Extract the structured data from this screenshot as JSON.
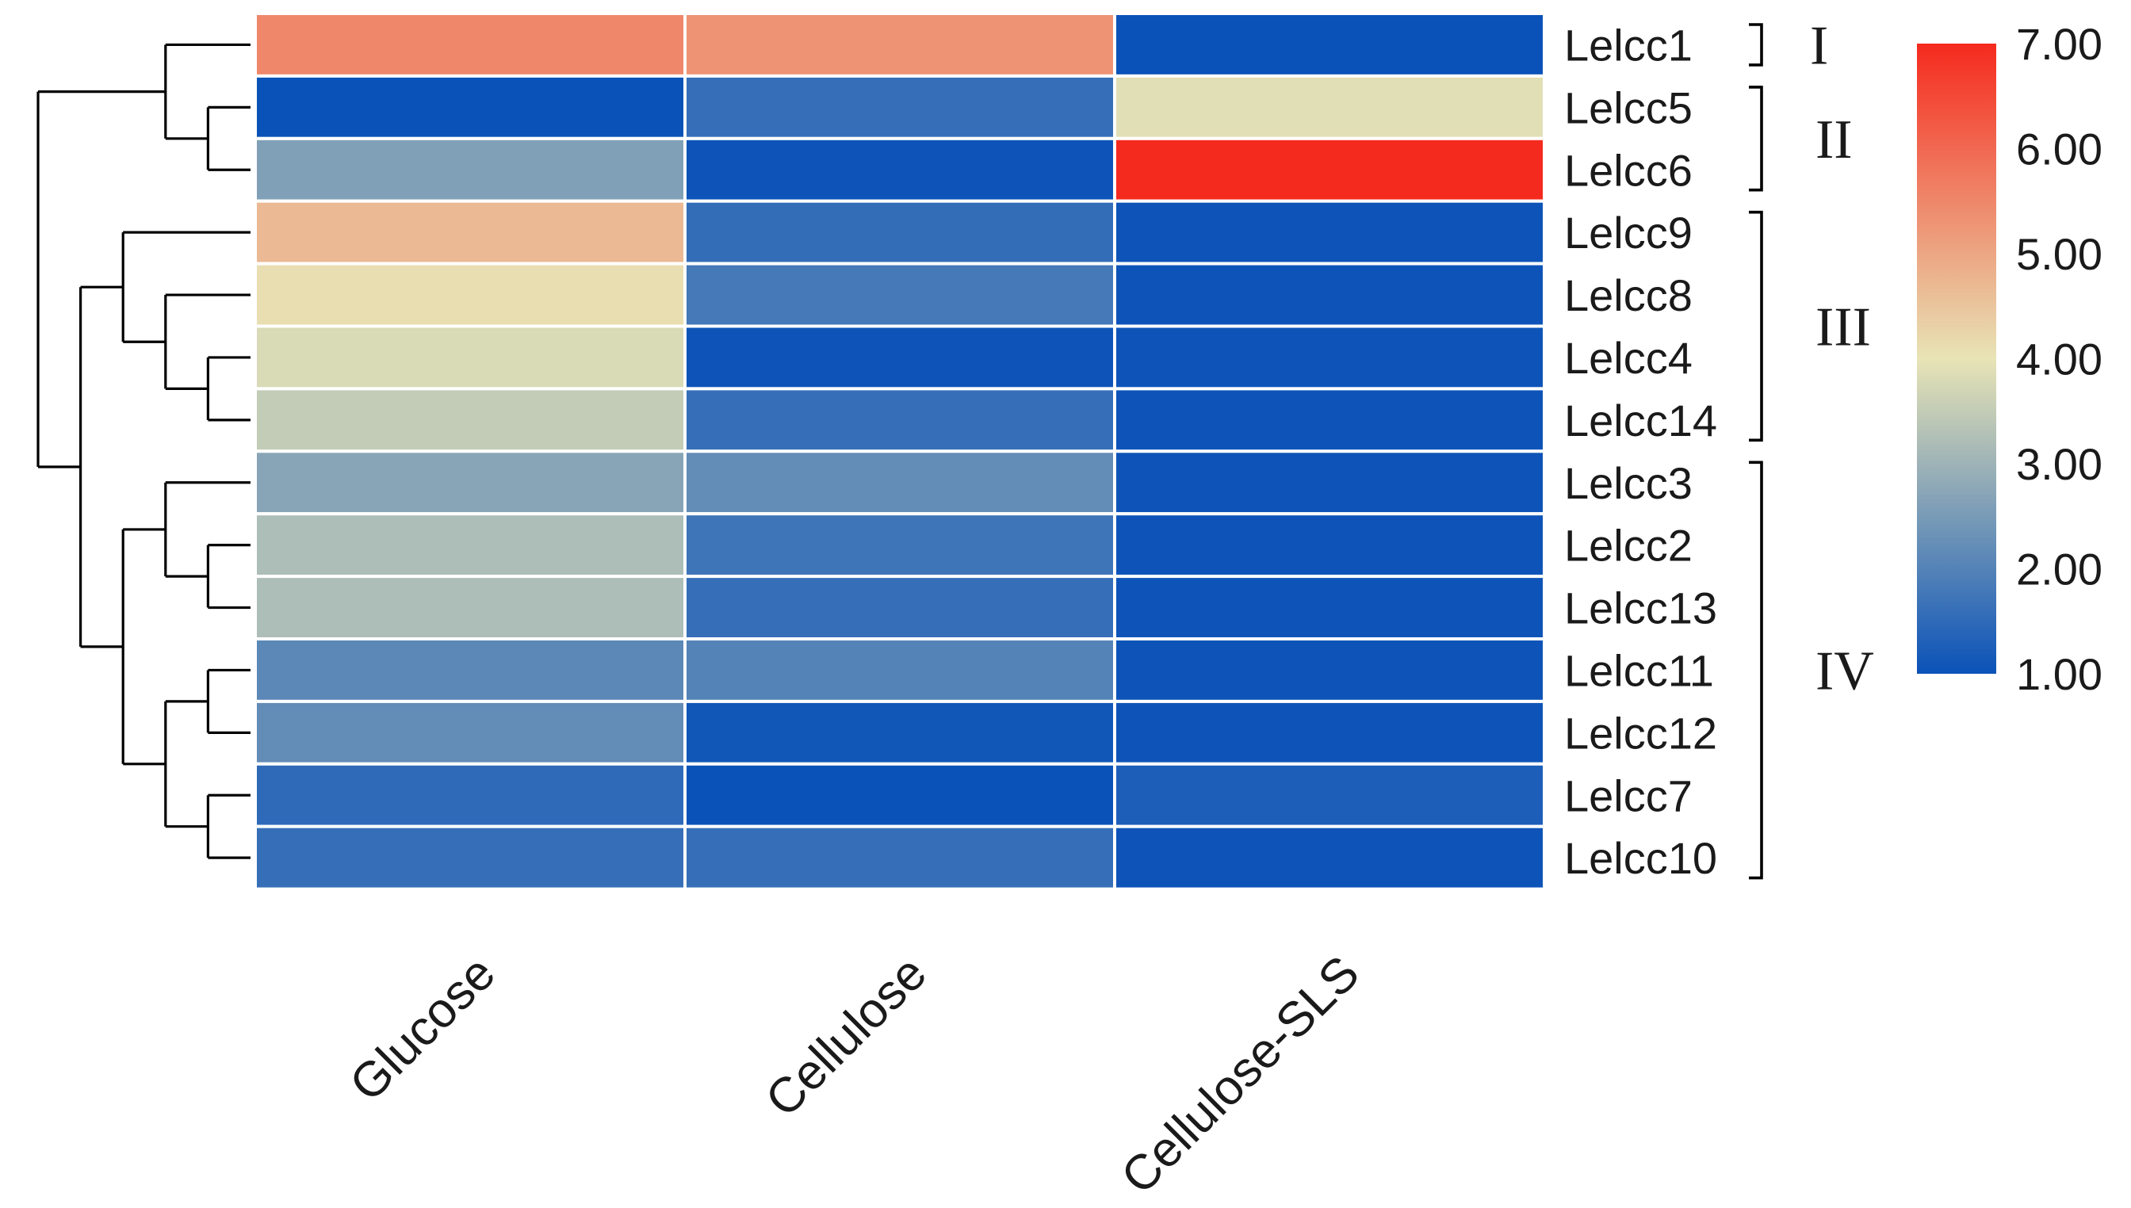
{
  "chart_data": {
    "type": "heatmap",
    "columns": [
      "Glucose",
      "Cellulose",
      "Cellulose-SLS"
    ],
    "rows": [
      "Lelcc1",
      "Lelcc5",
      "Lelcc6",
      "Lelcc9",
      "Lelcc8",
      "Lelcc4",
      "Lelcc14",
      "Lelcc3",
      "Lelcc2",
      "Lelcc13",
      "Lelcc11",
      "Lelcc12",
      "Lelcc7",
      "Lelcc10"
    ],
    "values": [
      [
        5.5,
        5.3,
        1.0
      ],
      [
        1.0,
        1.6,
        3.9
      ],
      [
        2.6,
        1.05,
        7.0
      ],
      [
        4.7,
        1.55,
        1.05
      ],
      [
        4.1,
        1.8,
        1.05
      ],
      [
        3.8,
        1.05,
        1.05
      ],
      [
        3.5,
        1.6,
        1.05
      ],
      [
        2.7,
        2.2,
        1.05
      ],
      [
        3.2,
        1.7,
        1.05
      ],
      [
        3.2,
        1.6,
        1.05
      ],
      [
        2.1,
        2.0,
        1.05
      ],
      [
        2.2,
        1.1,
        1.05
      ],
      [
        1.5,
        1.0,
        1.25
      ],
      [
        1.6,
        1.6,
        1.05
      ]
    ],
    "colorbar": {
      "min": 1.0,
      "max": 7.0,
      "ticks": [
        "7.00",
        "6.00",
        "5.00",
        "4.00",
        "3.00",
        "2.00",
        "1.00"
      ],
      "colors": {
        "low": "#0a52b8",
        "mid": "#e8e4b6",
        "high": "#f52a1e"
      }
    },
    "groups": [
      {
        "label": "I",
        "rows": [
          "Lelcc1"
        ]
      },
      {
        "label": "II",
        "rows": [
          "Lelcc5",
          "Lelcc6"
        ]
      },
      {
        "label": "III",
        "rows": [
          "Lelcc9",
          "Lelcc8",
          "Lelcc4",
          "Lelcc14"
        ]
      },
      {
        "label": "IV",
        "rows": [
          "Lelcc3",
          "Lelcc2",
          "Lelcc13",
          "Lelcc11",
          "Lelcc12",
          "Lelcc7",
          "Lelcc10"
        ]
      }
    ],
    "dendrogram": "((Lelcc1,(Lelcc5,Lelcc6)),((Lelcc9,(Lelcc8,(Lelcc4,Lelcc14))),((Lelcc3,(Lelcc2,Lelcc13)),((Lelcc11,Lelcc12),(Lelcc7,Lelcc10)))))",
    "legend_position": "right"
  }
}
